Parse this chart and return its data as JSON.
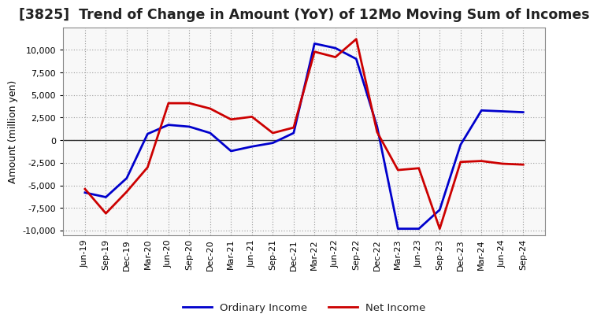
{
  "title": "[3825]  Trend of Change in Amount (YoY) of 12Mo Moving Sum of Incomes",
  "ylabel": "Amount (million yen)",
  "x_labels": [
    "Jun-19",
    "Sep-19",
    "Dec-19",
    "Mar-20",
    "Jun-20",
    "Sep-20",
    "Dec-20",
    "Mar-21",
    "Jun-21",
    "Sep-21",
    "Dec-21",
    "Mar-22",
    "Jun-22",
    "Sep-22",
    "Dec-22",
    "Mar-23",
    "Jun-23",
    "Sep-23",
    "Dec-23",
    "Mar-24",
    "Jun-24",
    "Sep-24"
  ],
  "ordinary_income": [
    -5800,
    -6300,
    -4200,
    700,
    1700,
    1500,
    800,
    -1200,
    -700,
    -300,
    800,
    10700,
    10200,
    9000,
    1500,
    -9800,
    -9800,
    -7700,
    -500,
    3300,
    3200,
    3100
  ],
  "net_income": [
    -5400,
    -8100,
    -5700,
    -3000,
    4100,
    4100,
    3500,
    2300,
    2600,
    800,
    1400,
    9800,
    9200,
    11200,
    900,
    -3300,
    -3100,
    -9800,
    -2400,
    -2300,
    -2600,
    -2700
  ],
  "ordinary_color": "#0000cc",
  "net_color": "#cc0000",
  "line_width": 2.0,
  "ylim": [
    -10500,
    12500
  ],
  "yticks": [
    -10000,
    -7500,
    -5000,
    -2500,
    0,
    2500,
    5000,
    7500,
    10000
  ],
  "plot_bg_color": "#f8f8f8",
  "outer_bg_color": "#ffffff",
  "grid_color": "#999999",
  "legend_ordinary": "Ordinary Income",
  "legend_net": "Net Income",
  "title_fontsize": 12.5,
  "ylabel_fontsize": 9,
  "tick_fontsize": 8
}
